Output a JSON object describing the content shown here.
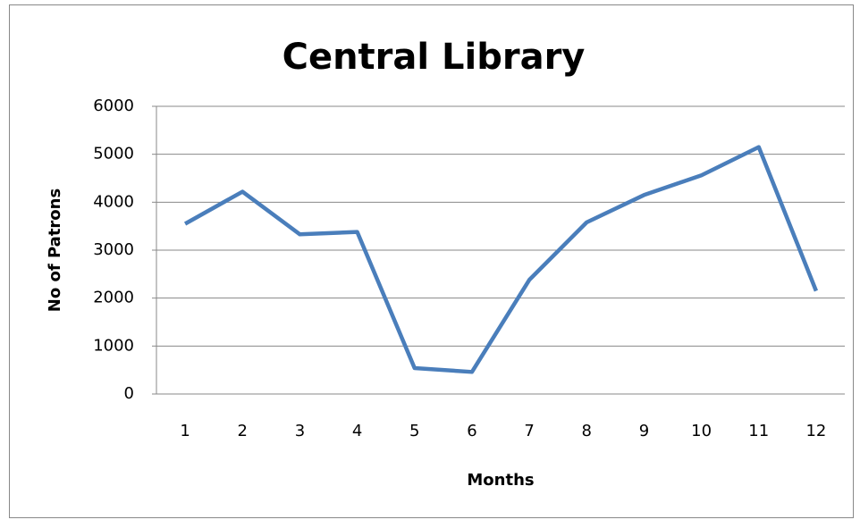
{
  "chart_data": {
    "type": "line",
    "title": "Central Library",
    "x_label": "Months",
    "y_label": "No of Patrons",
    "categories": [
      "1",
      "2",
      "3",
      "4",
      "5",
      "6",
      "7",
      "8",
      "9",
      "10",
      "11",
      "12"
    ],
    "series": [
      {
        "name": "Central Library",
        "color": "#4a7ebb",
        "values": [
          3550,
          4220,
          3330,
          3380,
          540,
          460,
          2380,
          3580,
          4150,
          4560,
          5150,
          2150
        ]
      }
    ],
    "ylim": [
      0,
      6000
    ],
    "yticks": [
      0,
      1000,
      2000,
      3000,
      4000,
      5000,
      6000
    ],
    "grid": true,
    "legend": false
  }
}
